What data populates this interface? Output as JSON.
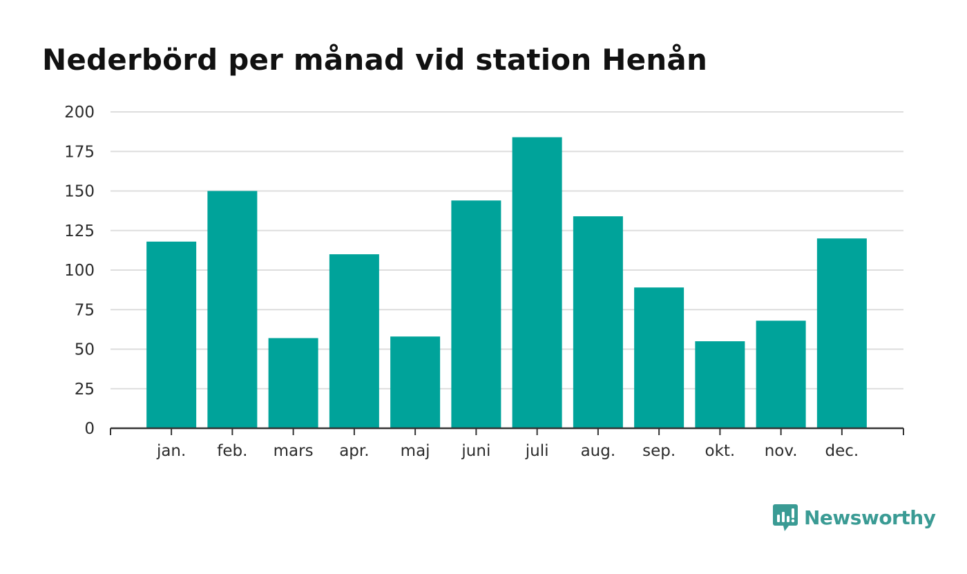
{
  "title": "Nederbörd per månad vid station Henån",
  "brand": {
    "name": "Newsworthy",
    "logo_icon": "newsworthy-logo-icon",
    "color": "#3a9b94"
  },
  "colors": {
    "bar": "#00a39a",
    "grid": "#dddddd",
    "axis": "#333333"
  },
  "chart_data": {
    "type": "bar",
    "title": "Nederbörd per månad vid station Henån",
    "categories": [
      "jan.",
      "feb.",
      "mars",
      "apr.",
      "maj",
      "juni",
      "juli",
      "aug.",
      "sep.",
      "okt.",
      "nov.",
      "dec."
    ],
    "values": [
      118,
      150,
      57,
      110,
      58,
      144,
      184,
      134,
      89,
      55,
      68,
      120
    ],
    "yticks": [
      0,
      25,
      50,
      75,
      100,
      125,
      150,
      175,
      200
    ],
    "ylim": [
      0,
      200
    ],
    "xlabel": "",
    "ylabel": "",
    "grid": true,
    "legend": "none"
  }
}
